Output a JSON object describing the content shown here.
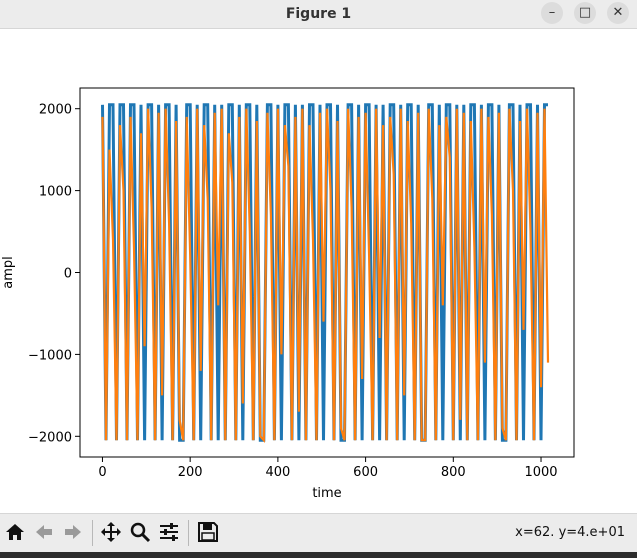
{
  "window": {
    "title": "Figure 1"
  },
  "toolbar": {
    "buttons": [
      {
        "name": "home-button",
        "icon": "home-icon"
      },
      {
        "name": "back-button",
        "icon": "arrow-left-icon"
      },
      {
        "name": "forward-button",
        "icon": "arrow-right-icon"
      },
      {
        "name": "pan-button",
        "icon": "move-icon"
      },
      {
        "name": "zoom-button",
        "icon": "magnifier-icon"
      },
      {
        "name": "configure-subplots-button",
        "icon": "sliders-icon"
      },
      {
        "name": "save-button",
        "icon": "floppy-disk-icon"
      }
    ],
    "coords": "x=62. y=4.e+01"
  },
  "colors": {
    "series1": "#1f77b4",
    "series2": "#ff7f0e"
  },
  "chart_data": {
    "type": "line",
    "title": "",
    "xlabel": "time",
    "ylabel": "ampl",
    "xlim": [
      -51.2,
      1075.2
    ],
    "ylim": [
      -2252.8,
      2252.8
    ],
    "xticks": [
      0,
      200,
      400,
      600,
      800,
      1000
    ],
    "yticks": [
      -2000,
      -1000,
      0,
      1000,
      2000
    ],
    "xtick_labels": [
      "0",
      "200",
      "400",
      "600",
      "800",
      "1000"
    ],
    "ytick_labels": [
      "−2000",
      "−1000",
      "0",
      "1000",
      "2000"
    ],
    "series": [
      {
        "color": "#1f77b4",
        "x_start": 0,
        "x_step": 8,
        "values": [
          2048,
          -2048,
          2048,
          2048,
          -2048,
          2048,
          2048,
          -2048,
          2048,
          2048,
          -2048,
          2048,
          -2048,
          2048,
          2048,
          -2048,
          2048,
          -2048,
          2048,
          2048,
          -2048,
          2048,
          -2048,
          -2048,
          2048,
          2048,
          -2048,
          2048,
          -2048,
          2048,
          2048,
          -2048,
          2048,
          -2048,
          2048,
          -2048,
          2048,
          2048,
          -2048,
          2048,
          -2048,
          2048,
          2048,
          -2048,
          2048,
          -2048,
          -2048,
          2048,
          2048,
          -2048,
          2048,
          -2048,
          2048,
          2048,
          -2048,
          2048,
          -2048,
          2048,
          -2048,
          2048,
          2048,
          -2048,
          2048,
          -2048,
          2048,
          2048,
          -2048,
          2048,
          -2048,
          -2048,
          2048,
          2048,
          -2048,
          2048,
          -2048,
          2048,
          2048,
          -2048,
          2048,
          -2048,
          2048,
          -2048,
          2048,
          2048,
          -2048,
          2048,
          -2048,
          2048,
          2048,
          -2048,
          2048,
          -2048,
          -2048,
          2048,
          2048,
          -2048,
          2048,
          -2048,
          2048,
          2048,
          -2048,
          2048,
          -2048,
          2048,
          -2048,
          2048,
          2048,
          -2048,
          2048,
          -2048,
          2048,
          2048,
          -2048,
          2048,
          -2048,
          -2048,
          2048,
          2048,
          -2048,
          2048,
          -2048,
          2048,
          2048,
          -2048,
          2048,
          -2048,
          2048,
          2048
        ]
      },
      {
        "color": "#ff7f0e",
        "x_start": 0,
        "x_step": 8,
        "values": [
          1900,
          -2048,
          1500,
          400,
          -2048,
          1800,
          1000,
          -2048,
          1900,
          300,
          -2048,
          1700,
          -900,
          2000,
          800,
          -2048,
          1950,
          -1500,
          2000,
          600,
          -2048,
          1850,
          -1800,
          -2048,
          1900,
          200,
          -2048,
          2000,
          -1200,
          1800,
          900,
          -2048,
          1950,
          -400,
          2000,
          -2048,
          1700,
          1100,
          -2048,
          1900,
          -1600,
          2000,
          500,
          -2048,
          1850,
          -2000,
          -2048,
          1950,
          700,
          -2048,
          2000,
          -1000,
          1800,
          1300,
          -2048,
          1900,
          -1700,
          2000,
          -2048,
          1800,
          400,
          -2048,
          1950,
          -600,
          2000,
          1000,
          -2048,
          1850,
          -1900,
          -2048,
          2000,
          800,
          -2048,
          1900,
          -1300,
          1950,
          200,
          -2048,
          2000,
          -800,
          1800,
          -2048,
          1900,
          1200,
          -2048,
          2000,
          -1500,
          1850,
          600,
          -2048,
          1950,
          -2048,
          -2048,
          2000,
          900,
          -2048,
          1800,
          -400,
          1900,
          1400,
          -2048,
          2000,
          -1800,
          1950,
          -2048,
          1850,
          300,
          -2048,
          2000,
          -1100,
          1900,
          700,
          -2048,
          1950,
          -1900,
          -2048,
          2000,
          1000,
          -2048,
          1850,
          -700,
          2000,
          500,
          -2048,
          1950,
          -1400,
          2000,
          -1100
        ]
      }
    ]
  }
}
